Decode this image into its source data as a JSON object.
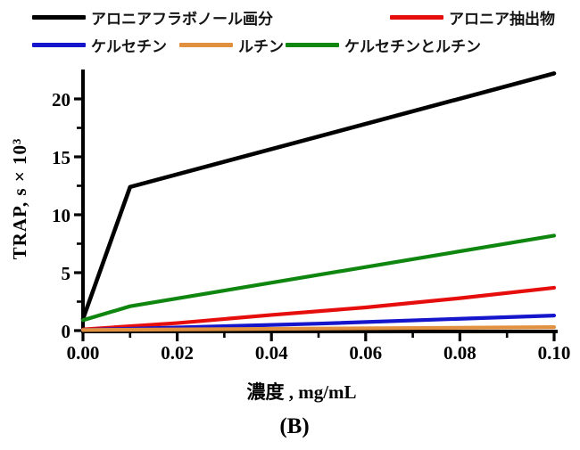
{
  "caption": "(B)",
  "legend": {
    "items": [
      {
        "label": "アロニアフラボノール画分",
        "color": "#000000"
      },
      {
        "label": "アロニア抽出物",
        "color": "#e60d0d"
      },
      {
        "label": "ケルセチン",
        "color": "#1515cc"
      },
      {
        "label": "ルチン",
        "color": "#e1903f"
      },
      {
        "label": "ケルセチンとルチン",
        "color": "#0f860f"
      }
    ]
  },
  "chart_data": {
    "type": "line",
    "title": "",
    "xlabel": "濃度 , mg/mL",
    "ylabel": "TRAP, s × 10³",
    "xlim": [
      0,
      0.1
    ],
    "ylim": [
      0,
      22.5
    ],
    "grid": false,
    "legend_position": "top",
    "x_ticks": [
      0,
      0.02,
      0.04,
      0.06,
      0.08,
      0.1
    ],
    "x_tick_labels": [
      "0.00",
      "0.02",
      "0.04",
      "0.06",
      "0.08",
      "0.10"
    ],
    "x_minor_ticks": [
      0.01,
      0.03,
      0.05,
      0.07,
      0.09
    ],
    "y_ticks": [
      0,
      5,
      10,
      15,
      20
    ],
    "y_tick_labels": [
      "0",
      "5",
      "10",
      "15",
      "20"
    ],
    "y_minor_ticks": [
      2.5,
      7.5,
      12.5,
      17.5
    ],
    "series": [
      {
        "name": "アロニアフラボノール画分",
        "color": "#000000",
        "points": [
          [
            0,
            1.0
          ],
          [
            0.01,
            12.4
          ],
          [
            0.1,
            22.2
          ]
        ]
      },
      {
        "name": "アロニア抽出物",
        "color": "#e60d0d",
        "points": [
          [
            0,
            0.1
          ],
          [
            0.02,
            0.65
          ],
          [
            0.04,
            1.35
          ],
          [
            0.06,
            2.0
          ],
          [
            0.08,
            2.8
          ],
          [
            0.1,
            3.7
          ]
        ]
      },
      {
        "name": "ケルセチン",
        "color": "#1515cc",
        "points": [
          [
            0,
            0.05
          ],
          [
            0.05,
            0.6
          ],
          [
            0.1,
            1.3
          ]
        ]
      },
      {
        "name": "ルチン",
        "color": "#e1903f",
        "points": [
          [
            0,
            0.05
          ],
          [
            0.1,
            0.3
          ]
        ]
      },
      {
        "name": "ケルセチンとルチン",
        "color": "#0f860f",
        "points": [
          [
            0,
            0.9
          ],
          [
            0.01,
            2.1
          ],
          [
            0.1,
            8.2
          ]
        ]
      }
    ]
  }
}
